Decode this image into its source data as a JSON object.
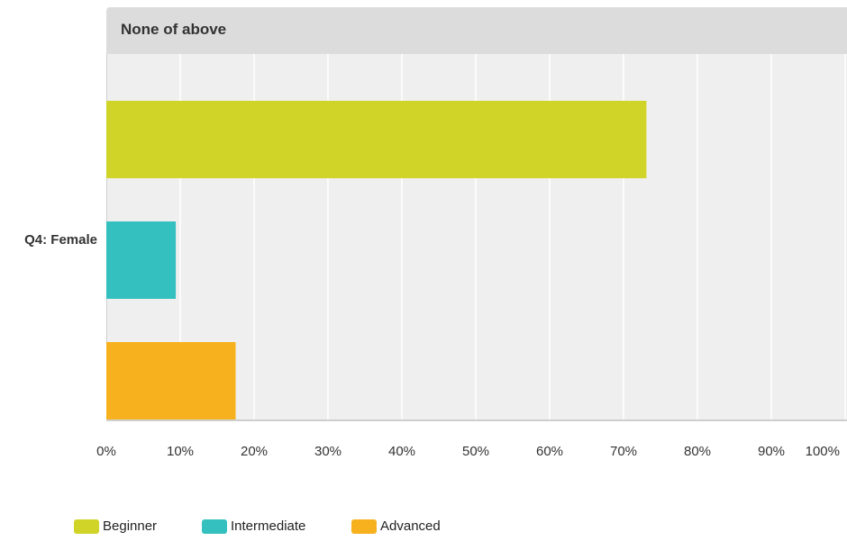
{
  "panel": {
    "title": "None of above"
  },
  "chart_data": {
    "type": "bar",
    "orientation": "horizontal",
    "categories": [
      "Q4: Female"
    ],
    "series": [
      {
        "name": "Beginner",
        "color": "#d0d428",
        "values": [
          73.1
        ]
      },
      {
        "name": "Intermediate",
        "color": "#35c0c0",
        "values": [
          9.4
        ]
      },
      {
        "name": "Advanced",
        "color": "#f7b11e",
        "values": [
          17.5
        ]
      }
    ],
    "xlim": [
      0,
      100
    ],
    "xticks": [
      "0%",
      "10%",
      "20%",
      "30%",
      "40%",
      "50%",
      "60%",
      "70%",
      "80%",
      "90%",
      "100%"
    ],
    "grid": true,
    "legend_position": "bottom-left"
  }
}
